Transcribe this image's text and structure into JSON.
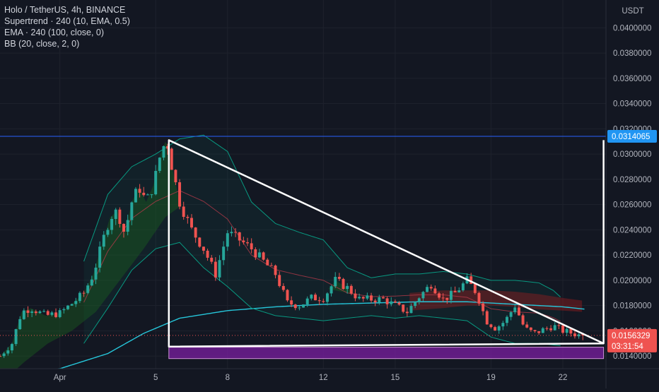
{
  "header": {
    "title": "Holo / TetherUS, 4h, BINANCE",
    "indicators": [
      "Supertrend · 240 (10, EMA, 0.5)",
      "EMA · 240 (100, close, 0)",
      "BB (20, close, 2, 0)"
    ]
  },
  "chart_data": {
    "type": "candlestick",
    "symbol": "Holo / TetherUS",
    "interval": "4h",
    "exchange": "BINANCE",
    "currency": "USDT",
    "ylim": [
      0.013,
      0.0422
    ],
    "y_ticks": [
      "0.0400000",
      "0.0380000",
      "0.0360000",
      "0.0340000",
      "0.0320000",
      "0.0300000",
      "0.0280000",
      "0.0260000",
      "0.0240000",
      "0.0220000",
      "0.0200000",
      "0.0180000",
      "0.0160000",
      "0.0140000"
    ],
    "x_ticks": [
      {
        "label": "Apr",
        "day": 0
      },
      {
        "label": "5",
        "day": 4
      },
      {
        "label": "8",
        "day": 7
      },
      {
        "label": "12",
        "day": 11
      },
      {
        "label": "15",
        "day": 14
      },
      {
        "label": "19",
        "day": 18
      },
      {
        "label": "22",
        "day": 21
      }
    ],
    "xlim_days": [
      -2.5,
      22.8
    ],
    "candles_per_day": 6,
    "last_price": "0.0156329",
    "countdown": "03:31:54",
    "high_line_price": "0.0314065",
    "colors": {
      "up": "#26a69a",
      "down": "#ef5350",
      "bg": "#131722",
      "grid": "#1e222d",
      "axis_text": "#b2b5be",
      "high_line": "#2962ff",
      "high_label_bg": "#2196f3",
      "last_label_bg": "#ef5350",
      "ema": "#26c6da",
      "bb": "#089981",
      "zone": "#7b1fa2",
      "drawing": "#ffffff"
    },
    "close_anchors": [
      [
        -2.5,
        0.014
      ],
      [
        -2.0,
        0.015
      ],
      [
        -1.6,
        0.0175
      ],
      [
        -1.2,
        0.0178
      ],
      [
        -0.6,
        0.0172
      ],
      [
        0.0,
        0.0174
      ],
      [
        0.6,
        0.0183
      ],
      [
        1.0,
        0.019
      ],
      [
        1.4,
        0.0205
      ],
      [
        1.8,
        0.0232
      ],
      [
        2.1,
        0.025
      ],
      [
        2.4,
        0.0255
      ],
      [
        2.7,
        0.0237
      ],
      [
        3.0,
        0.0262
      ],
      [
        3.3,
        0.0274
      ],
      [
        3.6,
        0.0262
      ],
      [
        3.9,
        0.0275
      ],
      [
        4.2,
        0.03
      ],
      [
        4.45,
        0.0312
      ],
      [
        4.7,
        0.0288
      ],
      [
        5.0,
        0.0262
      ],
      [
        5.5,
        0.024
      ],
      [
        6.0,
        0.0225
      ],
      [
        6.5,
        0.0205
      ],
      [
        7.0,
        0.0238
      ],
      [
        7.5,
        0.0232
      ],
      [
        8.0,
        0.0225
      ],
      [
        8.5,
        0.0215
      ],
      [
        9.0,
        0.0205
      ],
      [
        9.5,
        0.0182
      ],
      [
        10.0,
        0.018
      ],
      [
        10.5,
        0.0186
      ],
      [
        11.0,
        0.0186
      ],
      [
        11.5,
        0.02
      ],
      [
        12.0,
        0.0194
      ],
      [
        12.5,
        0.0185
      ],
      [
        13.0,
        0.0185
      ],
      [
        13.5,
        0.0185
      ],
      [
        14.0,
        0.018
      ],
      [
        14.5,
        0.0175
      ],
      [
        15.0,
        0.0187
      ],
      [
        15.5,
        0.0197
      ],
      [
        16.0,
        0.0185
      ],
      [
        16.5,
        0.019
      ],
      [
        17.0,
        0.02
      ],
      [
        17.4,
        0.019
      ],
      [
        17.8,
        0.0168
      ],
      [
        18.2,
        0.0162
      ],
      [
        18.6,
        0.0168
      ],
      [
        19.0,
        0.018
      ],
      [
        19.4,
        0.0162
      ],
      [
        19.8,
        0.0158
      ],
      [
        20.2,
        0.0161
      ],
      [
        20.6,
        0.0164
      ],
      [
        21.0,
        0.016
      ],
      [
        21.4,
        0.0158
      ],
      [
        21.8,
        0.0156
      ]
    ],
    "ema_anchors": [
      [
        -2.5,
        0.0128
      ],
      [
        0.0,
        0.013
      ],
      [
        2.0,
        0.0142
      ],
      [
        3.5,
        0.0158
      ],
      [
        5.0,
        0.017
      ],
      [
        7.0,
        0.0176
      ],
      [
        9.0,
        0.0179
      ],
      [
        11.0,
        0.0181
      ],
      [
        13.0,
        0.0182
      ],
      [
        15.0,
        0.0183
      ],
      [
        17.0,
        0.0183
      ],
      [
        19.0,
        0.0181
      ],
      [
        21.0,
        0.0179
      ],
      [
        22.0,
        0.0177
      ]
    ],
    "bb_upper_anchors": [
      [
        1.0,
        0.0215
      ],
      [
        2.0,
        0.0268
      ],
      [
        3.0,
        0.029
      ],
      [
        4.0,
        0.03
      ],
      [
        5.0,
        0.0312
      ],
      [
        6.0,
        0.0315
      ],
      [
        7.0,
        0.0302
      ],
      [
        8.0,
        0.0262
      ],
      [
        9.0,
        0.0245
      ],
      [
        10.0,
        0.0238
      ],
      [
        11.0,
        0.0232
      ],
      [
        12.0,
        0.021
      ],
      [
        13.0,
        0.0202
      ],
      [
        14.0,
        0.0205
      ],
      [
        15.0,
        0.0205
      ],
      [
        16.0,
        0.0207
      ],
      [
        17.0,
        0.0205
      ],
      [
        18.0,
        0.02
      ],
      [
        19.0,
        0.02
      ],
      [
        20.0,
        0.0198
      ],
      [
        20.6,
        0.0192
      ],
      [
        21.0,
        0.0185
      ]
    ],
    "bb_lower_anchors": [
      [
        1.0,
        0.015
      ],
      [
        2.0,
        0.0178
      ],
      [
        3.0,
        0.0208
      ],
      [
        4.0,
        0.0225
      ],
      [
        5.0,
        0.023
      ],
      [
        6.0,
        0.021
      ],
      [
        7.0,
        0.0195
      ],
      [
        8.0,
        0.0178
      ],
      [
        9.0,
        0.0172
      ],
      [
        10.0,
        0.017
      ],
      [
        11.0,
        0.0168
      ],
      [
        12.0,
        0.017
      ],
      [
        13.0,
        0.0172
      ],
      [
        14.0,
        0.017
      ],
      [
        15.0,
        0.0172
      ],
      [
        16.0,
        0.017
      ],
      [
        17.0,
        0.0168
      ],
      [
        18.0,
        0.0155
      ],
      [
        19.0,
        0.015
      ],
      [
        20.0,
        0.015
      ],
      [
        21.0,
        0.0148
      ]
    ],
    "supertrend_anchors": [
      [
        -2.5,
        0.0118
      ],
      [
        -1.5,
        0.0135
      ],
      [
        -0.5,
        0.015
      ],
      [
        0.5,
        0.016
      ],
      [
        1.5,
        0.0175
      ],
      [
        2.5,
        0.02
      ],
      [
        3.5,
        0.0225
      ],
      [
        4.4,
        0.025
      ],
      [
        5.5,
        0.0265
      ],
      [
        6.5,
        0.025
      ],
      [
        7.5,
        0.0236
      ],
      [
        8.5,
        0.0222
      ],
      [
        9.5,
        0.0206
      ],
      [
        10.5,
        0.0196
      ],
      [
        11.5,
        0.0192
      ],
      [
        12.5,
        0.0188
      ],
      [
        13.5,
        0.0186
      ],
      [
        14.5,
        0.0186
      ]
    ],
    "red_cloud_anchors": [
      [
        14.6,
        0.019,
        0.0176
      ],
      [
        16.0,
        0.0192,
        0.0178
      ],
      [
        17.0,
        0.0192,
        0.018
      ],
      [
        18.0,
        0.0192,
        0.018
      ],
      [
        19.0,
        0.0191,
        0.0179
      ],
      [
        20.0,
        0.0189,
        0.0177
      ],
      [
        21.0,
        0.0186,
        0.0176
      ],
      [
        21.8,
        0.0184,
        0.0175
      ]
    ],
    "drawings": {
      "triangle": [
        [
          4.55,
          0.0311
        ],
        [
          4.55,
          0.01475
        ],
        [
          22.7,
          0.015
        ]
      ],
      "vertical_line": [
        [
          22.7,
          0.015
        ],
        [
          22.7,
          0.0311
        ]
      ],
      "zone": {
        "from_day": 4.55,
        "to_day": 22.7,
        "top": 0.0147,
        "bottom": 0.0138
      },
      "high_line_price": 0.0314065
    },
    "last_price_value": 0.0156329
  }
}
